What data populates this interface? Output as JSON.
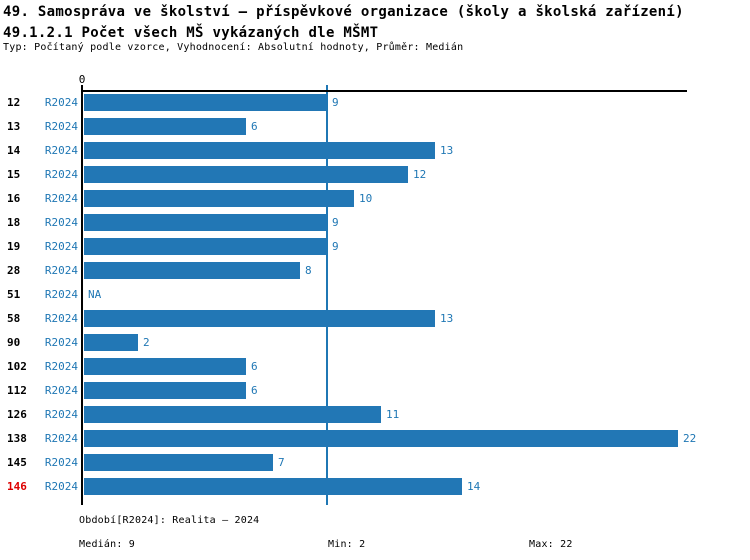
{
  "header": {
    "title_line1": "49. Samospráva ve školství – příspěvkové organizace (školy a školská zařízení)",
    "title_line2": "49.1.2.1 Počet všech MŠ vykázaných dle MŠMT",
    "subtitle": "Typ: Počítaný podle vzorce, Vyhodnocení: Absolutní hodnoty, Průměr: Medián"
  },
  "chart_data": {
    "type": "bar",
    "orientation": "horizontal",
    "title": "49.1.2.1 Počet všech MŠ vykázaných dle MŠMT",
    "categories": [
      "12",
      "13",
      "14",
      "15",
      "16",
      "18",
      "19",
      "28",
      "51",
      "58",
      "90",
      "102",
      "112",
      "126",
      "138",
      "145",
      "146"
    ],
    "series": [
      {
        "name": "R2024",
        "values": [
          9,
          6,
          13,
          12,
          10,
          9,
          9,
          8,
          null,
          13,
          2,
          6,
          6,
          11,
          22,
          7,
          14
        ]
      }
    ],
    "na_label": "NA",
    "xlabel": "",
    "ylabel": "",
    "xlim": [
      0,
      22.3
    ],
    "x_tick_labels": [
      "0"
    ],
    "grid": false,
    "legend_visible": false,
    "reference_line": {
      "label": "Medián",
      "value": 9
    },
    "highlighted_category": "146",
    "median": 9,
    "min": 2,
    "max": 22
  },
  "colors": {
    "bar": "#2277B5",
    "blue_text": "#1F77B4",
    "highlight_red": "#DD0000",
    "axis": "#000000"
  },
  "footer": {
    "period": "Období[R2024]: Realita – 2024",
    "median": "Medián: 9",
    "min": "Min: 2",
    "max": "Max: 22"
  }
}
